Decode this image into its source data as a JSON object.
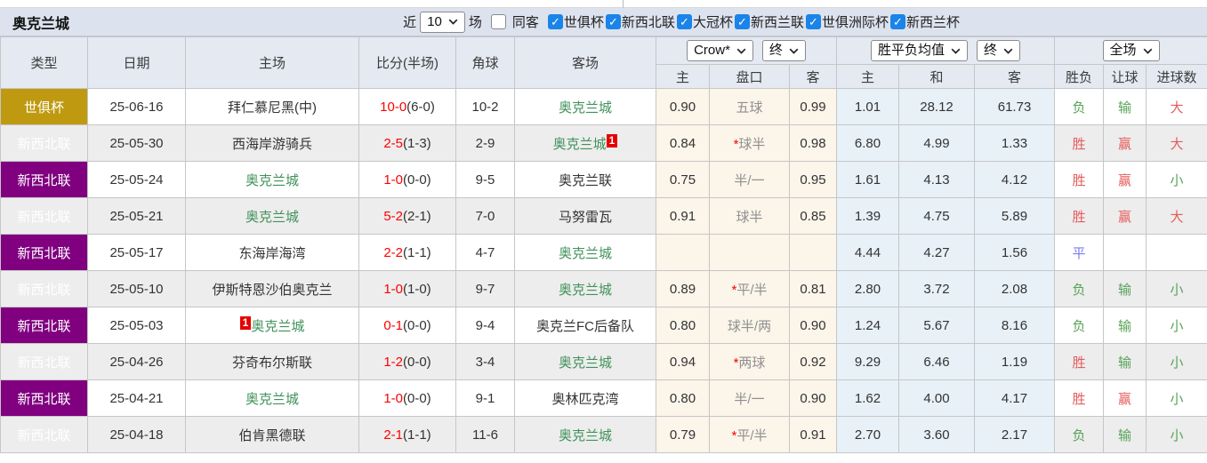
{
  "page": {
    "title": "奥克兰城",
    "filter": {
      "recent_label": "近",
      "recent_value": "10",
      "recent_suffix": "场",
      "same_opponent_label": "同客",
      "same_opponent_checked": false,
      "competitions": [
        {
          "label": "世俱杯",
          "checked": true
        },
        {
          "label": "新西北联",
          "checked": true
        },
        {
          "label": "大冠杯",
          "checked": true
        },
        {
          "label": "新西兰联",
          "checked": true
        },
        {
          "label": "世俱洲际杯",
          "checked": true
        },
        {
          "label": "新西兰杯",
          "checked": true
        }
      ]
    }
  },
  "table": {
    "selects": {
      "company": "Crow*",
      "company_state": "终",
      "avg": "胜平负均值",
      "avg_state": "终",
      "scope": "全场"
    },
    "headers": {
      "type": "类型",
      "date": "日期",
      "home": "主场",
      "score": "比分(半场)",
      "corner": "角球",
      "away": "客场",
      "odds_home": "主",
      "odds_handicap": "盘口",
      "odds_away": "客",
      "avg_home": "主",
      "avg_draw": "和",
      "avg_away": "客",
      "result": "胜负",
      "handicap_result": "让球",
      "goals": "进球数"
    },
    "rows": [
      {
        "league": "世俱杯",
        "league_class": "gold",
        "date": "25-06-16",
        "home": {
          "name": "拜仁慕尼黑(中)",
          "green": false,
          "badge": "",
          "badge_pos": ""
        },
        "score": {
          "main": "10-0",
          "half": "(6-0)"
        },
        "corner": "10-2",
        "away": {
          "name": "奥克兰城",
          "green": true,
          "badge": "",
          "badge_pos": ""
        },
        "odds": {
          "home": "0.90",
          "handicap": "五球",
          "handicap_star": false,
          "away": "0.99"
        },
        "avg": {
          "home": "1.01",
          "draw": "28.12",
          "away": "61.73"
        },
        "result": {
          "text": "负",
          "color": "green"
        },
        "handicap_result": {
          "text": "输",
          "color": "green"
        },
        "goals": {
          "text": "大",
          "color": "red"
        }
      },
      {
        "league": "新西北联",
        "league_class": "purple",
        "date": "25-05-30",
        "home": {
          "name": "西海岸游骑兵",
          "green": false,
          "badge": "",
          "badge_pos": ""
        },
        "score": {
          "main": "2-5",
          "half": "(1-3)"
        },
        "corner": "2-9",
        "away": {
          "name": "奥克兰城",
          "green": true,
          "badge": "1",
          "badge_pos": "after"
        },
        "odds": {
          "home": "0.84",
          "handicap": "球半",
          "handicap_star": true,
          "away": "0.98"
        },
        "avg": {
          "home": "6.80",
          "draw": "4.99",
          "away": "1.33"
        },
        "result": {
          "text": "胜",
          "color": "red"
        },
        "handicap_result": {
          "text": "赢",
          "color": "red"
        },
        "goals": {
          "text": "大",
          "color": "red"
        }
      },
      {
        "league": "新西北联",
        "league_class": "purple",
        "date": "25-05-24",
        "home": {
          "name": "奥克兰城",
          "green": true,
          "badge": "",
          "badge_pos": ""
        },
        "score": {
          "main": "1-0",
          "half": "(0-0)"
        },
        "corner": "9-5",
        "away": {
          "name": "奥克兰联",
          "green": false,
          "badge": "",
          "badge_pos": ""
        },
        "odds": {
          "home": "0.75",
          "handicap": "半/一",
          "handicap_star": false,
          "away": "0.95"
        },
        "avg": {
          "home": "1.61",
          "draw": "4.13",
          "away": "4.12"
        },
        "result": {
          "text": "胜",
          "color": "red"
        },
        "handicap_result": {
          "text": "赢",
          "color": "red"
        },
        "goals": {
          "text": "小",
          "color": "green"
        }
      },
      {
        "league": "新西北联",
        "league_class": "purple",
        "date": "25-05-21",
        "home": {
          "name": "奥克兰城",
          "green": true,
          "badge": "",
          "badge_pos": ""
        },
        "score": {
          "main": "5-2",
          "half": "(2-1)"
        },
        "corner": "7-0",
        "away": {
          "name": "马努雷瓦",
          "green": false,
          "badge": "",
          "badge_pos": ""
        },
        "odds": {
          "home": "0.91",
          "handicap": "球半",
          "handicap_star": false,
          "away": "0.85"
        },
        "avg": {
          "home": "1.39",
          "draw": "4.75",
          "away": "5.89"
        },
        "result": {
          "text": "胜",
          "color": "red"
        },
        "handicap_result": {
          "text": "赢",
          "color": "red"
        },
        "goals": {
          "text": "大",
          "color": "red"
        }
      },
      {
        "league": "新西北联",
        "league_class": "purple",
        "date": "25-05-17",
        "home": {
          "name": "东海岸海湾",
          "green": false,
          "badge": "",
          "badge_pos": ""
        },
        "score": {
          "main": "2-2",
          "half": "(1-1)"
        },
        "corner": "4-7",
        "away": {
          "name": "奥克兰城",
          "green": true,
          "badge": "",
          "badge_pos": ""
        },
        "odds": {
          "home": "",
          "handicap": "",
          "handicap_star": false,
          "away": ""
        },
        "avg": {
          "home": "4.44",
          "draw": "4.27",
          "away": "1.56"
        },
        "result": {
          "text": "平",
          "color": "blue"
        },
        "handicap_result": {
          "text": "",
          "color": ""
        },
        "goals": {
          "text": "",
          "color": ""
        }
      },
      {
        "league": "新西北联",
        "league_class": "purple",
        "date": "25-05-10",
        "home": {
          "name": "伊斯特恩沙伯奥克兰",
          "green": false,
          "badge": "",
          "badge_pos": ""
        },
        "score": {
          "main": "1-0",
          "half": "(1-0)"
        },
        "corner": "9-7",
        "away": {
          "name": "奥克兰城",
          "green": true,
          "badge": "",
          "badge_pos": ""
        },
        "odds": {
          "home": "0.89",
          "handicap": "平/半",
          "handicap_star": true,
          "away": "0.81"
        },
        "avg": {
          "home": "2.80",
          "draw": "3.72",
          "away": "2.08"
        },
        "result": {
          "text": "负",
          "color": "green"
        },
        "handicap_result": {
          "text": "输",
          "color": "green"
        },
        "goals": {
          "text": "小",
          "color": "green"
        }
      },
      {
        "league": "新西北联",
        "league_class": "purple",
        "date": "25-05-03",
        "home": {
          "name": "奥克兰城",
          "green": true,
          "badge": "1",
          "badge_pos": "before"
        },
        "score": {
          "main": "0-1",
          "half": "(0-0)"
        },
        "corner": "9-4",
        "away": {
          "name": "奥克兰FC后备队",
          "green": false,
          "badge": "",
          "badge_pos": ""
        },
        "odds": {
          "home": "0.80",
          "handicap": "球半/两",
          "handicap_star": false,
          "away": "0.90"
        },
        "avg": {
          "home": "1.24",
          "draw": "5.67",
          "away": "8.16"
        },
        "result": {
          "text": "负",
          "color": "green"
        },
        "handicap_result": {
          "text": "输",
          "color": "green"
        },
        "goals": {
          "text": "小",
          "color": "green"
        }
      },
      {
        "league": "新西北联",
        "league_class": "purple",
        "date": "25-04-26",
        "home": {
          "name": "芬奇布尔斯联",
          "green": false,
          "badge": "",
          "badge_pos": ""
        },
        "score": {
          "main": "1-2",
          "half": "(0-0)"
        },
        "corner": "3-4",
        "away": {
          "name": "奥克兰城",
          "green": true,
          "badge": "",
          "badge_pos": ""
        },
        "odds": {
          "home": "0.94",
          "handicap": "两球",
          "handicap_star": true,
          "away": "0.92"
        },
        "avg": {
          "home": "9.29",
          "draw": "6.46",
          "away": "1.19"
        },
        "result": {
          "text": "胜",
          "color": "red"
        },
        "handicap_result": {
          "text": "输",
          "color": "green"
        },
        "goals": {
          "text": "小",
          "color": "green"
        }
      },
      {
        "league": "新西北联",
        "league_class": "purple",
        "date": "25-04-21",
        "home": {
          "name": "奥克兰城",
          "green": true,
          "badge": "",
          "badge_pos": ""
        },
        "score": {
          "main": "1-0",
          "half": "(0-0)"
        },
        "corner": "9-1",
        "away": {
          "name": "奥林匹克湾",
          "green": false,
          "badge": "",
          "badge_pos": ""
        },
        "odds": {
          "home": "0.80",
          "handicap": "半/一",
          "handicap_star": false,
          "away": "0.90"
        },
        "avg": {
          "home": "1.62",
          "draw": "4.00",
          "away": "4.17"
        },
        "result": {
          "text": "胜",
          "color": "red"
        },
        "handicap_result": {
          "text": "赢",
          "color": "red"
        },
        "goals": {
          "text": "小",
          "color": "green"
        }
      },
      {
        "league": "新西北联",
        "league_class": "purple",
        "date": "25-04-18",
        "home": {
          "name": "伯肯黑德联",
          "green": false,
          "badge": "",
          "badge_pos": ""
        },
        "score": {
          "main": "2-1",
          "half": "(1-1)"
        },
        "corner": "11-6",
        "away": {
          "name": "奥克兰城",
          "green": true,
          "badge": "",
          "badge_pos": ""
        },
        "odds": {
          "home": "0.79",
          "handicap": "平/半",
          "handicap_star": true,
          "away": "0.91"
        },
        "avg": {
          "home": "2.70",
          "draw": "3.60",
          "away": "2.17"
        },
        "result": {
          "text": "负",
          "color": "green"
        },
        "handicap_result": {
          "text": "输",
          "color": "green"
        },
        "goals": {
          "text": "小",
          "color": "green"
        }
      }
    ]
  },
  "colors": {
    "league_gold": "#bf9a10",
    "league_purple": "#800080",
    "win_red": "#e65c5c",
    "lose_green": "#57a257",
    "draw_blue": "#7b7bef",
    "score_red": "#fe0000",
    "team_green": "#40915a",
    "handicap_gray": "#909090",
    "checkbox_blue": "#1a84e8",
    "odds_bg_cream": "#fbf5ea",
    "avg_bg_blue": "#e8f1f8",
    "header_bg": "#e4e9f2",
    "titlebar_bg": "#dde3ee",
    "stripe_gray": "#ededed"
  }
}
